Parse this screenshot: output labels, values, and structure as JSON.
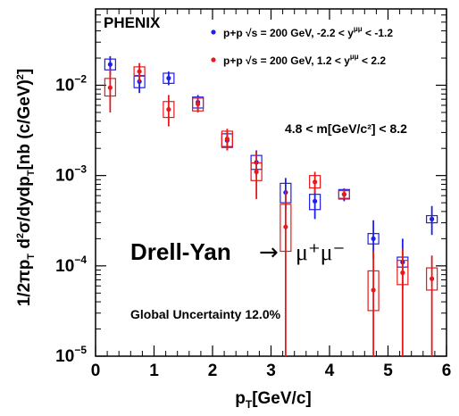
{
  "chart_data": {
    "type": "scatter",
    "title": "",
    "experiment_label": "PHENIX",
    "xlabel": {
      "base": "p",
      "sub": "T",
      "rest": "[GeV/c]"
    },
    "ylabel": "1/2πp_T d²σ/dydp_T[nb (c/GeV)²]",
    "xlim": [
      0,
      6
    ],
    "ylim": [
      1e-05,
      0.07
    ],
    "y_scale": "log",
    "x_ticks": [
      0,
      1,
      2,
      3,
      4,
      5,
      6
    ],
    "x_tick_labels": [
      "0",
      "1",
      "2",
      "3",
      "4",
      "5",
      "6"
    ],
    "y_ticks": [
      1e-05,
      0.0001,
      0.001,
      0.01
    ],
    "y_tick_labels": [
      {
        "base": "10",
        "exp": "−5"
      },
      {
        "base": "10",
        "exp": "−4"
      },
      {
        "base": "10",
        "exp": "−3"
      },
      {
        "base": "10",
        "exp": "−2"
      }
    ],
    "grid": false,
    "legend_position": "top-right",
    "series": [
      {
        "name": "p+p  √s = 200 GeV, -2.2 < y^μμ < -1.2",
        "color": "#1f1fe6",
        "points": [
          {
            "x": 0.25,
            "y": 0.017,
            "stat_lo": 0.013,
            "stat_hi": 0.021,
            "sys_lo": 0.0148,
            "sys_hi": 0.0195
          },
          {
            "x": 0.75,
            "y": 0.011,
            "stat_lo": 0.0082,
            "stat_hi": 0.014,
            "sys_lo": 0.0094,
            "sys_hi": 0.0128
          },
          {
            "x": 1.25,
            "y": 0.012,
            "stat_lo": 0.01,
            "stat_hi": 0.0142,
            "sys_lo": 0.0105,
            "sys_hi": 0.0136
          },
          {
            "x": 1.75,
            "y": 0.0065,
            "stat_lo": 0.0052,
            "stat_hi": 0.0078,
            "sys_lo": 0.0056,
            "sys_hi": 0.0074
          },
          {
            "x": 2.25,
            "y": 0.00245,
            "stat_lo": 0.0019,
            "stat_hi": 0.0031,
            "sys_lo": 0.00205,
            "sys_hi": 0.0029
          },
          {
            "x": 2.75,
            "y": 0.0014,
            "stat_lo": 0.001,
            "stat_hi": 0.0019,
            "sys_lo": 0.00117,
            "sys_hi": 0.00167
          },
          {
            "x": 3.25,
            "y": 0.00065,
            "stat_lo": 0.00042,
            "stat_hi": 0.00094,
            "sys_lo": 0.0005,
            "sys_hi": 0.00082
          },
          {
            "x": 3.75,
            "y": 0.00052,
            "stat_lo": 0.00033,
            "stat_hi": 0.00075,
            "sys_lo": 0.00042,
            "sys_hi": 0.00062
          },
          {
            "x": 4.25,
            "y": 0.00062,
            "stat_lo": 0.00052,
            "stat_hi": 0.00072,
            "sys_lo": 0.00055,
            "sys_hi": 0.0007
          },
          {
            "x": 4.75,
            "y": 0.0002,
            "stat_lo": 0.00012,
            "stat_hi": 0.00032,
            "sys_lo": 0.000175,
            "sys_hi": 0.000228
          },
          {
            "x": 5.25,
            "y": 0.00011,
            "stat_lo": 5.5e-05,
            "stat_hi": 0.0002,
            "sys_lo": 9.7e-05,
            "sys_hi": 0.000125
          },
          {
            "x": 5.75,
            "y": 0.00033,
            "stat_lo": 0.00022,
            "stat_hi": 0.00046,
            "sys_lo": 0.0003,
            "sys_hi": 0.00036
          }
        ]
      },
      {
        "name": "p+p  √s = 200 GeV, 1.2 < y^μμ < 2.2",
        "color": "#e61a1a",
        "points": [
          {
            "x": 0.25,
            "y": 0.0094,
            "stat_lo": 0.005,
            "stat_hi": 0.015,
            "sys_lo": 0.0076,
            "sys_hi": 0.0119
          },
          {
            "x": 0.75,
            "y": 0.0142,
            "stat_lo": 0.0108,
            "stat_hi": 0.0176,
            "sys_lo": 0.0126,
            "sys_hi": 0.016
          },
          {
            "x": 1.25,
            "y": 0.0054,
            "stat_lo": 0.0035,
            "stat_hi": 0.0078,
            "sys_lo": 0.0044,
            "sys_hi": 0.0066
          },
          {
            "x": 1.75,
            "y": 0.0062,
            "stat_lo": 0.005,
            "stat_hi": 0.0074,
            "sys_lo": 0.0052,
            "sys_hi": 0.0072
          },
          {
            "x": 2.25,
            "y": 0.00255,
            "stat_lo": 0.0019,
            "stat_hi": 0.0033,
            "sys_lo": 0.0021,
            "sys_hi": 0.0031
          },
          {
            "x": 2.75,
            "y": 0.0011,
            "stat_lo": 0.00055,
            "stat_hi": 0.00185,
            "sys_lo": 0.00088,
            "sys_hi": 0.00138
          },
          {
            "x": 3.25,
            "y": 0.00027,
            "stat_lo": 1e-05,
            "stat_hi": 0.00068,
            "sys_lo": 0.000145,
            "sys_hi": 0.00048
          },
          {
            "x": 3.75,
            "y": 0.00085,
            "stat_lo": 0.00064,
            "stat_hi": 0.0011,
            "sys_lo": 0.00073,
            "sys_hi": 0.001
          },
          {
            "x": 4.25,
            "y": 0.00062,
            "stat_lo": 0.00055,
            "stat_hi": 0.0007,
            "sys_lo": 0.00056,
            "sys_hi": 0.00068
          },
          {
            "x": 4.75,
            "y": 5.4e-05,
            "stat_lo": 1e-05,
            "stat_hi": 0.000145,
            "sys_lo": 3.2e-05,
            "sys_hi": 8.8e-05
          },
          {
            "x": 5.25,
            "y": 8.4e-05,
            "stat_lo": 1e-05,
            "stat_hi": 0.000155,
            "sys_lo": 6.2e-05,
            "sys_hi": 0.000115
          },
          {
            "x": 5.75,
            "y": 7.2e-05,
            "stat_lo": 1e-05,
            "stat_hi": 0.00013,
            "sys_lo": 5.4e-05,
            "sys_hi": 9.5e-05
          }
        ]
      }
    ],
    "annotations": {
      "mass_range": "4.8 < m[GeV/c²] < 8.2",
      "process_label": "Drell-Yan",
      "process_arrow": "→",
      "process_products": "μ⁺μ⁻",
      "global_uncertainty": "Global Uncertainty 12.0%"
    }
  }
}
